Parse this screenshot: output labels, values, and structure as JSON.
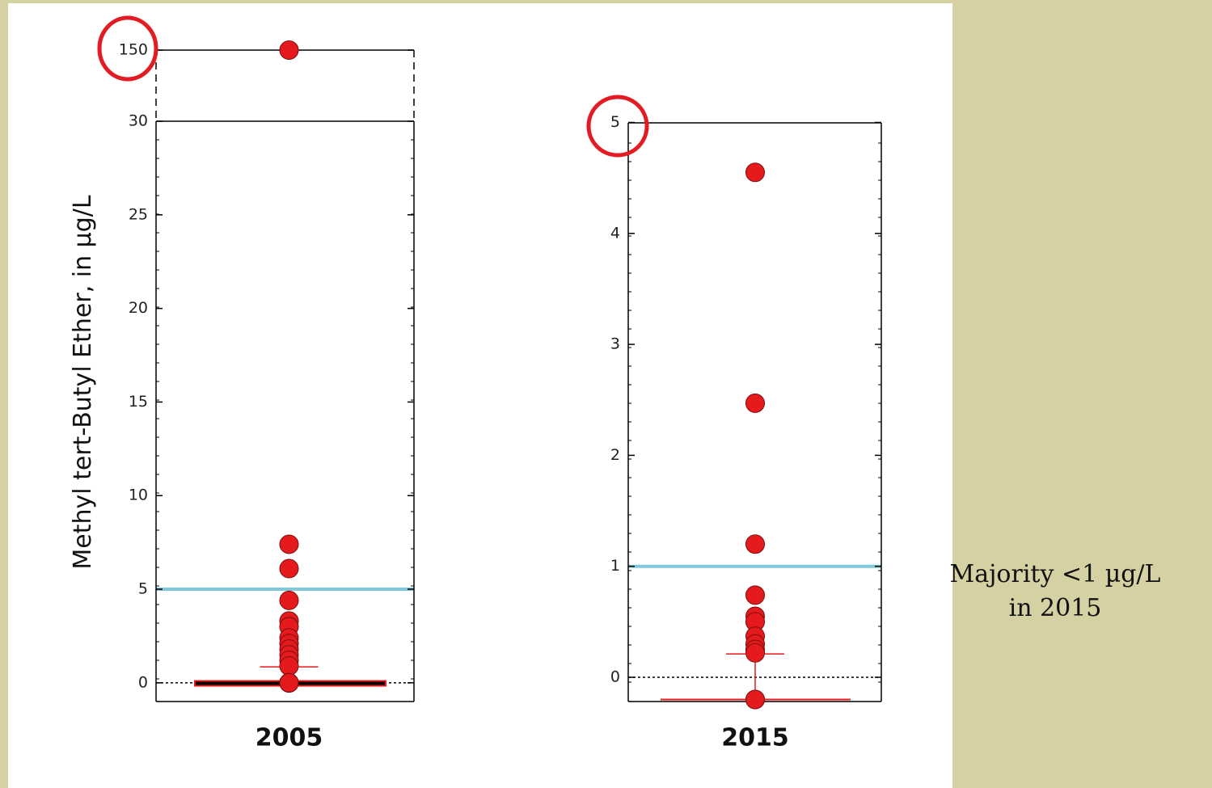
{
  "chart_data": [
    {
      "type": "scatter",
      "category": "2005",
      "ylabel": "Methyl tert-Butyl Ether, in µg/L",
      "axis_break": true,
      "lower_ylim": [
        -1,
        30
      ],
      "upper_tick": 150,
      "y_ticks": [
        0,
        5,
        10,
        15,
        20,
        25,
        30,
        150
      ],
      "tick_labels": [
        "0",
        "5",
        "10",
        "15",
        "20",
        "25",
        "30",
        "150"
      ],
      "reference_line": {
        "y": 5,
        "color": "#7fc8dc"
      },
      "zero_line": {
        "y": 0,
        "style": "dotted"
      },
      "box": {
        "q1": 0,
        "median": 0,
        "q3": 0.1,
        "upper_whisker": 0.85
      },
      "points": [
        150,
        7.4,
        6.1,
        4.4,
        3.3,
        3.0,
        2.4,
        2.1,
        1.8,
        1.5,
        1.2,
        0.9,
        0,
        0,
        0,
        0,
        0,
        0,
        0
      ],
      "highlighted_tick": "150"
    },
    {
      "type": "scatter",
      "category": "2015",
      "ylim": [
        -0.2,
        5
      ],
      "y_ticks": [
        0,
        1,
        2,
        3,
        4,
        5
      ],
      "tick_labels": [
        "0",
        "1",
        "2",
        "3",
        "4",
        "5"
      ],
      "reference_line": {
        "y": 1,
        "color": "#7fc8dc"
      },
      "zero_line": {
        "y": 0,
        "style": "dotted"
      },
      "box": {
        "q1": -0.2,
        "median": -0.2,
        "q3": -0.2,
        "upper_whisker": 0.21
      },
      "points": [
        4.55,
        2.47,
        1.2,
        0.74,
        0.55,
        0.5,
        0.37,
        0.3,
        0.25,
        0.22,
        -0.2,
        -0.2
      ],
      "highlighted_tick": "5"
    }
  ],
  "colors": {
    "point": "#e41a1c",
    "reference": "#7fc8dc",
    "highlight": "#e31b23",
    "background": "#d6d1a2"
  },
  "annotation": {
    "line1": "Majority <1 µg/L",
    "line2": "in 2015"
  }
}
